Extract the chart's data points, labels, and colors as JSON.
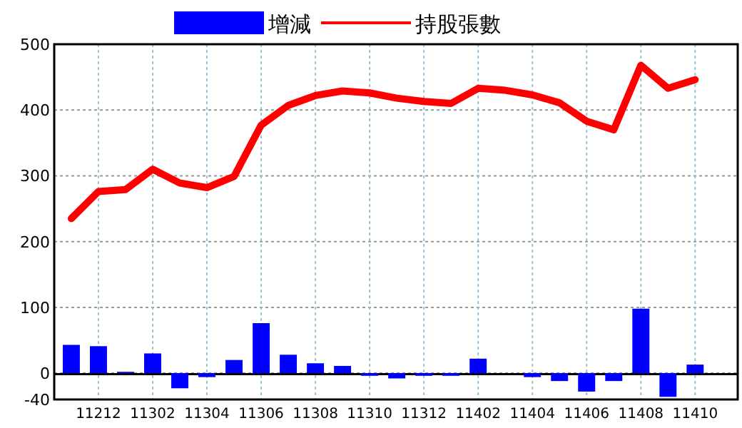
{
  "chart_data": {
    "type": "bar",
    "categories": [
      null,
      "11212",
      null,
      "11302",
      null,
      "11304",
      null,
      "11306",
      null,
      "11308",
      null,
      "11310",
      null,
      "11312",
      null,
      "11402",
      null,
      "11404",
      null,
      "11406",
      null,
      "11408",
      null,
      "11410"
    ],
    "series": [
      {
        "name": "增減",
        "color": "#0000ff",
        "values": [
          43,
          41,
          2,
          30,
          -23,
          -6,
          20,
          76,
          28,
          15,
          11,
          -4,
          -8,
          -4,
          -4,
          22,
          0,
          -6,
          -12,
          -28,
          -12,
          98,
          -36,
          13
        ]
      },
      {
        "name": "持股張數",
        "type": "line",
        "color": "#ff0000",
        "values": [
          235,
          276,
          279,
          310,
          289,
          282,
          299,
          377,
          407,
          422,
          429,
          426,
          418,
          413,
          410,
          433,
          430,
          423,
          411,
          383,
          370,
          468,
          433,
          446
        ]
      }
    ],
    "ylim": [
      -40,
      500
    ],
    "yticks": [
      -40,
      0,
      100,
      200,
      300,
      400,
      500
    ],
    "grid": true,
    "legend": "top"
  }
}
